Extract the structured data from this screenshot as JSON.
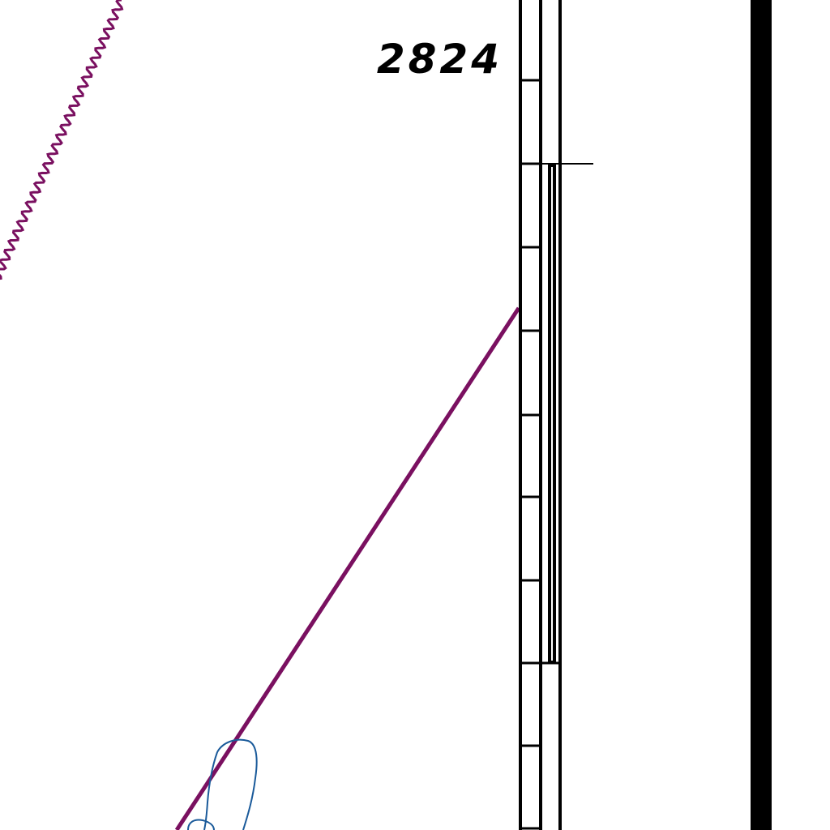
{
  "map": {
    "grid_label": "2824",
    "colors": {
      "boundary": "#7a1060",
      "water": "#1a5a9a",
      "ink": "#000000",
      "background": "#ffffff"
    }
  }
}
